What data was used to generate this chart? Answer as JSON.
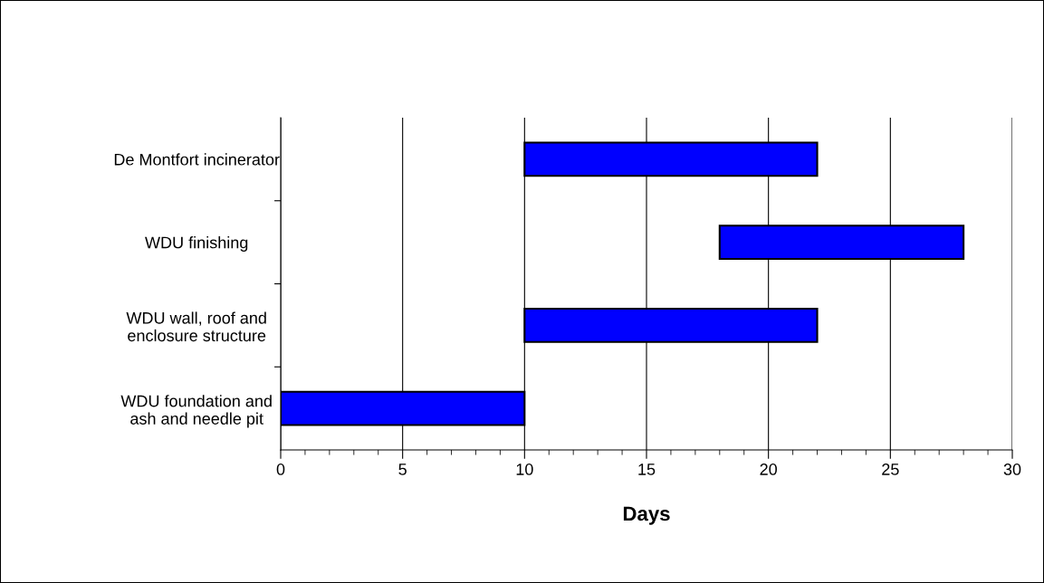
{
  "chart_data": {
    "type": "bar",
    "orientation": "horizontal",
    "xlabel": "Days",
    "categories": [
      "De Montfort incinerator",
      "WDU finishing",
      "WDU wall, roof and\nenclosure structure",
      "WDU foundation and\nash and needle pit"
    ],
    "base": [
      10,
      18,
      10,
      0
    ],
    "values": [
      12,
      10,
      12,
      10
    ],
    "color": "#0000ff",
    "xlim": [
      0,
      30
    ],
    "xticks": [
      0,
      5,
      10,
      15,
      20,
      25,
      30
    ],
    "grid": "x"
  }
}
